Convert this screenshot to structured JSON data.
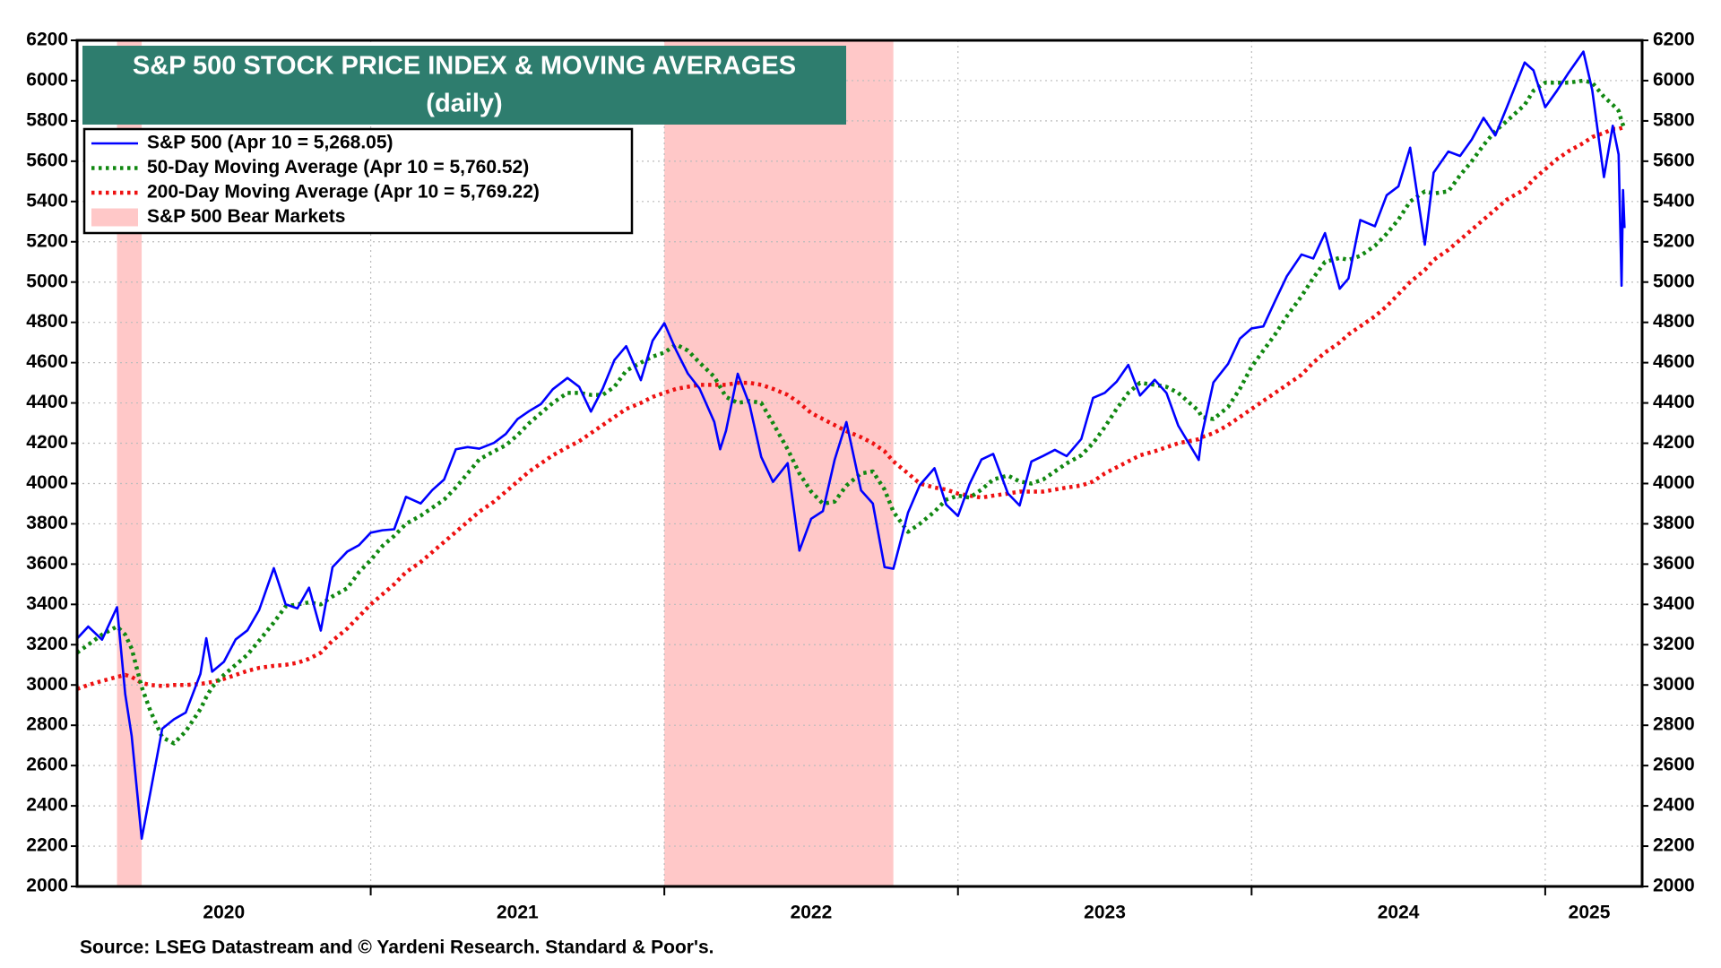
{
  "chart_data": {
    "type": "line",
    "title": "S&P 500 STOCK PRICE INDEX & MOVING AVERAGES",
    "subtitle": "(daily)",
    "source": "Source: LSEG Datastream and © Yardeni Research. Standard & Poor's.",
    "x": [
      2020.0,
      2020.038,
      2020.085,
      2020.136,
      2020.164,
      2020.186,
      2020.22,
      2020.25,
      2020.29,
      2020.33,
      2020.37,
      2020.42,
      2020.44,
      2020.46,
      2020.5,
      2020.54,
      2020.58,
      2020.62,
      2020.67,
      2020.71,
      2020.75,
      2020.79,
      2020.83,
      2020.87,
      2020.92,
      2020.96,
      2021.0,
      2021.04,
      2021.08,
      2021.12,
      2021.17,
      2021.21,
      2021.25,
      2021.29,
      2021.33,
      2021.37,
      2021.42,
      2021.46,
      2021.5,
      2021.54,
      2021.58,
      2021.62,
      2021.67,
      2021.71,
      2021.75,
      2021.79,
      2021.83,
      2021.87,
      2021.92,
      2021.96,
      2022.0,
      2022.04,
      2022.08,
      2022.12,
      2022.17,
      2022.19,
      2022.21,
      2022.25,
      2022.29,
      2022.33,
      2022.37,
      2022.42,
      2022.46,
      2022.5,
      2022.54,
      2022.58,
      2022.62,
      2022.67,
      2022.71,
      2022.75,
      2022.78,
      2022.83,
      2022.87,
      2022.92,
      2022.96,
      2023.0,
      2023.04,
      2023.08,
      2023.12,
      2023.17,
      2023.21,
      2023.25,
      2023.29,
      2023.33,
      2023.37,
      2023.42,
      2023.46,
      2023.5,
      2023.54,
      2023.58,
      2023.62,
      2023.67,
      2023.71,
      2023.75,
      2023.82,
      2023.83,
      2023.87,
      2023.92,
      2023.96,
      2024.0,
      2024.04,
      2024.08,
      2024.12,
      2024.17,
      2024.21,
      2024.25,
      2024.3,
      2024.33,
      2024.37,
      2024.42,
      2024.46,
      2024.5,
      2024.54,
      2024.59,
      2024.62,
      2024.67,
      2024.71,
      2024.75,
      2024.79,
      2024.83,
      2024.87,
      2024.93,
      2024.96,
      2025.0,
      2025.04,
      2025.08,
      2025.13,
      2025.16,
      2025.2,
      2025.23,
      2025.25,
      2025.26,
      2025.265,
      2025.27
    ],
    "series": [
      {
        "name": "S&P 500 (Apr 10 = 5,268.05)",
        "color": "#0000ff",
        "style": "solid",
        "values": [
          3230,
          3290,
          3225,
          3386,
          2954,
          2746,
          2237,
          2470,
          2783,
          2830,
          2863,
          3055,
          3232,
          3066,
          3115,
          3226,
          3271,
          3372,
          3580,
          3401,
          3380,
          3483,
          3270,
          3585,
          3662,
          3694,
          3756,
          3768,
          3773,
          3934,
          3901,
          3968,
          4020,
          4170,
          4181,
          4173,
          4202,
          4246,
          4320,
          4360,
          4395,
          4468,
          4524,
          4480,
          4357,
          4471,
          4613,
          4682,
          4513,
          4709,
          4796,
          4662,
          4546,
          4471,
          4306,
          4170,
          4262,
          4545,
          4392,
          4132,
          4008,
          4101,
          3667,
          3825,
          3863,
          4118,
          4305,
          3966,
          3901,
          3585,
          3577,
          3856,
          3992,
          4076,
          3895,
          3839,
          3999,
          4119,
          4147,
          3951,
          3891,
          4109,
          4137,
          4167,
          4136,
          4221,
          4425,
          4450,
          4505,
          4589,
          4437,
          4515,
          4450,
          4288,
          4117,
          4237,
          4502,
          4594,
          4719,
          4770,
          4780,
          4906,
          5029,
          5137,
          5117,
          5243,
          4967,
          5018,
          5308,
          5277,
          5431,
          5475,
          5667,
          5186,
          5543,
          5648,
          5626,
          5708,
          5815,
          5728,
          5870,
          6090,
          6051,
          5868,
          5950,
          6040,
          6144,
          5954,
          5521,
          5776,
          5633,
          4982,
          5457,
          5268.05
        ]
      },
      {
        "name": "50-Day Moving Average (Apr 10 = 5,760.52)",
        "color": "#118811",
        "style": "dotted",
        "values": [
          3160,
          3200,
          3250,
          3290,
          3250,
          3180,
          2990,
          2870,
          2740,
          2710,
          2770,
          2880,
          2940,
          2990,
          3050,
          3100,
          3150,
          3220,
          3310,
          3390,
          3400,
          3410,
          3400,
          3440,
          3480,
          3560,
          3620,
          3690,
          3740,
          3800,
          3840,
          3880,
          3920,
          3980,
          4050,
          4120,
          4160,
          4190,
          4240,
          4300,
          4350,
          4400,
          4450,
          4450,
          4440,
          4440,
          4480,
          4560,
          4600,
          4630,
          4650,
          4690,
          4660,
          4600,
          4530,
          4480,
          4430,
          4400,
          4410,
          4400,
          4300,
          4170,
          4050,
          3960,
          3900,
          3910,
          3990,
          4050,
          4060,
          3970,
          3860,
          3760,
          3800,
          3860,
          3920,
          3940,
          3930,
          3970,
          4020,
          4040,
          4010,
          4000,
          4020,
          4060,
          4100,
          4140,
          4200,
          4280,
          4370,
          4450,
          4500,
          4490,
          4480,
          4450,
          4360,
          4330,
          4320,
          4380,
          4470,
          4580,
          4660,
          4740,
          4830,
          4930,
          5020,
          5100,
          5120,
          5110,
          5130,
          5180,
          5240,
          5310,
          5400,
          5450,
          5440,
          5450,
          5530,
          5600,
          5680,
          5750,
          5800,
          5880,
          5950,
          5990,
          5990,
          5990,
          6000,
          5990,
          5920,
          5880,
          5850,
          5800,
          5780,
          5760.52
        ]
      },
      {
        "name": "200-Day Moving Average (Apr 10 = 5,769.22)",
        "color": "#ee1111",
        "style": "dotted",
        "values": [
          2980,
          3000,
          3020,
          3040,
          3050,
          3040,
          3010,
          3000,
          2995,
          3000,
          3000,
          3005,
          3010,
          3015,
          3030,
          3050,
          3070,
          3085,
          3095,
          3100,
          3110,
          3130,
          3160,
          3220,
          3280,
          3340,
          3400,
          3450,
          3500,
          3560,
          3610,
          3660,
          3710,
          3760,
          3810,
          3860,
          3910,
          3960,
          4010,
          4060,
          4100,
          4140,
          4180,
          4210,
          4250,
          4290,
          4330,
          4370,
          4400,
          4430,
          4450,
          4470,
          4480,
          4490,
          4490,
          4490,
          4490,
          4500,
          4500,
          4490,
          4470,
          4440,
          4400,
          4350,
          4320,
          4290,
          4260,
          4230,
          4200,
          4160,
          4110,
          4050,
          4000,
          3980,
          3970,
          3950,
          3940,
          3930,
          3940,
          3950,
          3960,
          3960,
          3960,
          3970,
          3980,
          3990,
          4010,
          4050,
          4080,
          4110,
          4140,
          4160,
          4180,
          4200,
          4220,
          4230,
          4250,
          4290,
          4330,
          4370,
          4410,
          4450,
          4490,
          4540,
          4600,
          4650,
          4700,
          4740,
          4780,
          4830,
          4880,
          4940,
          5000,
          5060,
          5110,
          5160,
          5210,
          5260,
          5310,
          5360,
          5410,
          5460,
          5510,
          5560,
          5610,
          5650,
          5690,
          5720,
          5740,
          5760,
          5760,
          5765,
          5767,
          5769.22
        ]
      }
    ],
    "bear_markets_label": "S&P 500 Bear Markets",
    "bear_markets": [
      [
        2020.136,
        2020.22
      ],
      [
        2022.0,
        2022.78
      ]
    ],
    "bear_color": "#ffc8c8",
    "xlim": [
      2020.0,
      2025.33
    ],
    "xticks": [
      {
        "value": 2020.5,
        "label": "2020"
      },
      {
        "value": 2021.5,
        "label": "2021"
      },
      {
        "value": 2022.5,
        "label": "2022"
      },
      {
        "value": 2023.5,
        "label": "2023"
      },
      {
        "value": 2024.5,
        "label": "2024"
      },
      {
        "value": 2025.15,
        "label": "2025"
      }
    ],
    "xgrid": [
      2021,
      2022,
      2023,
      2024,
      2025
    ],
    "ylim": [
      2000,
      6200
    ],
    "yticks": [
      2000,
      2200,
      2400,
      2600,
      2800,
      3000,
      3200,
      3400,
      3600,
      3800,
      4000,
      4200,
      4400,
      4600,
      4800,
      5000,
      5200,
      5400,
      5600,
      5800,
      6000,
      6200
    ],
    "grid": true,
    "legend": "upper left"
  }
}
